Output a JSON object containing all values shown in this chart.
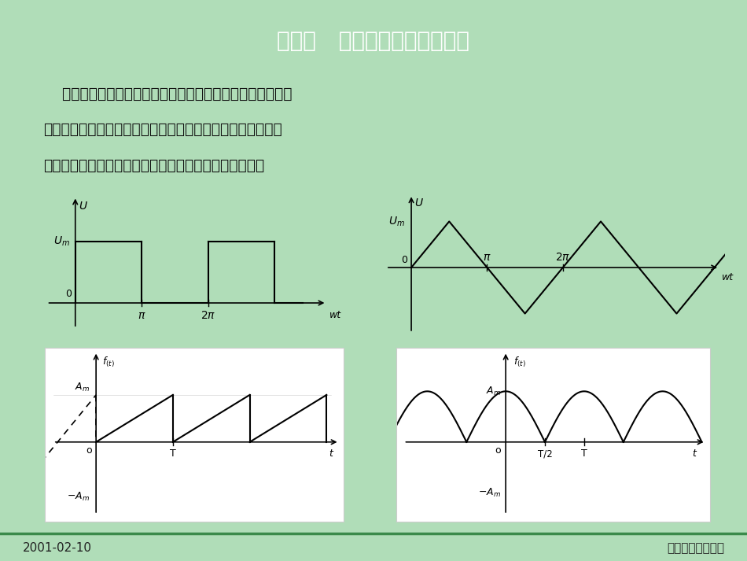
{
  "bg_color": "#b0ddb8",
  "title_bg": "#4a9a5a",
  "title_text": "第五章   非正弦周期电流的电路",
  "title_color": "#ffffff",
  "body_text_lines": [
    "    在电器工程、无线电及电子工程中，除了前述正弦交流电路",
    "外，非正弦电流电路也经常遇到，例如：实验室常用的信号发",
    "生器。除正弦波信号外，还如矩形波电压、锯齿波电压。"
  ],
  "footer_left": "2001-02-10",
  "footer_right": "南京航空航天大学",
  "panel_bg": "#ffffff"
}
